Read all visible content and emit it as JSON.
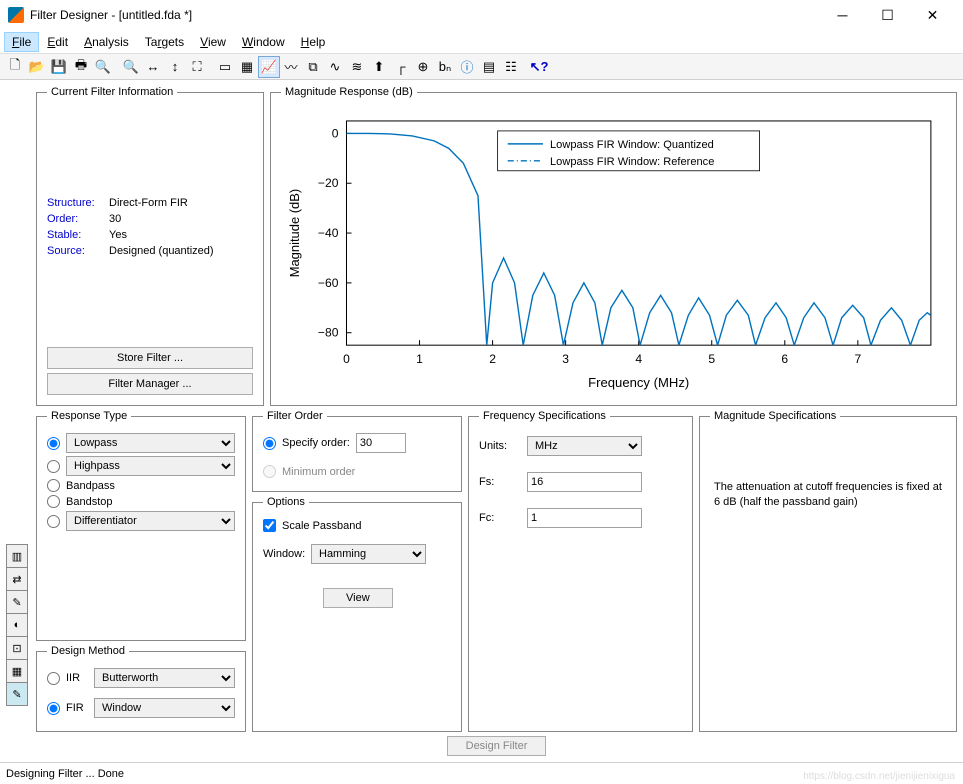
{
  "window": {
    "title": "Filter Designer -  [untitled.fda *]"
  },
  "menu": {
    "items": [
      "File",
      "Edit",
      "Analysis",
      "Targets",
      "View",
      "Window",
      "Help"
    ],
    "active_index": 0
  },
  "filter_info": {
    "legend": "Current Filter Information",
    "rows": [
      {
        "label": "Structure:",
        "value": "Direct-Form FIR"
      },
      {
        "label": "Order:",
        "value": "30"
      },
      {
        "label": "Stable:",
        "value": "Yes"
      },
      {
        "label": "Source:",
        "value": "Designed (quantized)"
      }
    ],
    "store_btn": "Store Filter ...",
    "manager_btn": "Filter Manager ..."
  },
  "chart": {
    "legend": "Magnitude Response (dB)",
    "type": "line",
    "xlabel": "Frequency (MHz)",
    "ylabel": "Magnitude (dB)",
    "xlim": [
      0,
      8
    ],
    "ylim": [
      -85,
      5
    ],
    "xticks": [
      0,
      1,
      2,
      3,
      4,
      5,
      6,
      7
    ],
    "yticks": [
      0,
      -20,
      -40,
      -60,
      -80
    ],
    "series": [
      {
        "name": "Lowpass FIR Window: Quantized",
        "color": "#0072bd",
        "dash": "solid"
      },
      {
        "name": "Lowpass FIR Window: Reference",
        "color": "#0072bd",
        "dash": "dashdot"
      }
    ],
    "curve": [
      [
        0,
        0
      ],
      [
        0.3,
        0
      ],
      [
        0.6,
        -0.2
      ],
      [
        0.9,
        -1
      ],
      [
        1.2,
        -3
      ],
      [
        1.4,
        -6
      ],
      [
        1.6,
        -12
      ],
      [
        1.8,
        -25
      ],
      [
        1.92,
        -85
      ],
      [
        2.0,
        -60
      ],
      [
        2.15,
        -50
      ],
      [
        2.3,
        -60
      ],
      [
        2.42,
        -85
      ],
      [
        2.55,
        -65
      ],
      [
        2.7,
        -56
      ],
      [
        2.85,
        -65
      ],
      [
        2.97,
        -85
      ],
      [
        3.1,
        -68
      ],
      [
        3.25,
        -60
      ],
      [
        3.4,
        -68
      ],
      [
        3.5,
        -85
      ],
      [
        3.62,
        -70
      ],
      [
        3.77,
        -63
      ],
      [
        3.92,
        -70
      ],
      [
        4.02,
        -85
      ],
      [
        4.15,
        -72
      ],
      [
        4.3,
        -65
      ],
      [
        4.45,
        -72
      ],
      [
        4.55,
        -85
      ],
      [
        4.68,
        -73
      ],
      [
        4.82,
        -66
      ],
      [
        4.97,
        -73
      ],
      [
        5.08,
        -85
      ],
      [
        5.2,
        -73
      ],
      [
        5.35,
        -67
      ],
      [
        5.5,
        -73
      ],
      [
        5.6,
        -85
      ],
      [
        5.73,
        -74
      ],
      [
        5.88,
        -68
      ],
      [
        6.02,
        -74
      ],
      [
        6.13,
        -85
      ],
      [
        6.26,
        -74
      ],
      [
        6.4,
        -68
      ],
      [
        6.55,
        -74
      ],
      [
        6.66,
        -85
      ],
      [
        6.78,
        -74
      ],
      [
        6.93,
        -69
      ],
      [
        7.08,
        -74
      ],
      [
        7.18,
        -85
      ],
      [
        7.31,
        -75
      ],
      [
        7.46,
        -70
      ],
      [
        7.6,
        -75
      ],
      [
        7.72,
        -85
      ],
      [
        7.84,
        -75
      ],
      [
        7.95,
        -72
      ],
      [
        8.0,
        -73
      ]
    ],
    "line_color": "#0072bd",
    "axis_color": "#000000",
    "grid_color": "#e0e0e0",
    "tick_fontsize": 12,
    "label_fontsize": 13,
    "background": "#ffffff"
  },
  "response_type": {
    "legend": "Response Type",
    "options": {
      "lowpass": "Lowpass",
      "highpass": "Highpass",
      "bandpass": "Bandpass",
      "bandstop": "Bandstop",
      "differentiator": "Differentiator"
    },
    "selected": "lowpass"
  },
  "design_method": {
    "legend": "Design Method",
    "iir_label": "IIR",
    "iir_value": "Butterworth",
    "fir_label": "FIR",
    "fir_value": "Window",
    "selected": "fir"
  },
  "filter_order": {
    "legend": "Filter Order",
    "specify_label": "Specify order:",
    "specify_value": "30",
    "minimum_label": "Minimum order",
    "selected": "specify"
  },
  "options": {
    "legend": "Options",
    "scale_label": "Scale Passband",
    "scale_checked": true,
    "window_label": "Window:",
    "window_value": "Hamming",
    "view_btn": "View"
  },
  "freq_spec": {
    "legend": "Frequency Specifications",
    "units_label": "Units:",
    "units_value": "MHz",
    "fs_label": "Fs:",
    "fs_value": "16",
    "fc_label": "Fc:",
    "fc_value": "1"
  },
  "mag_spec": {
    "legend": "Magnitude Specifications",
    "note": "The attenuation at cutoff frequencies is fixed at 6 dB (half the passband gain)"
  },
  "design_btn": "Design Filter",
  "status": "Designing Filter ... Done",
  "watermark": "https://blog.csdn.net/jienijienixigua"
}
